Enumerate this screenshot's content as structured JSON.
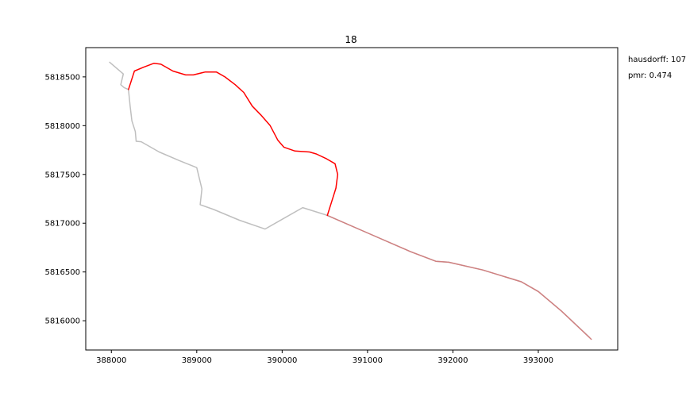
{
  "chart_data": {
    "type": "line",
    "title": "18",
    "xlabel": "",
    "ylabel": "",
    "xlim": [
      387700,
      393930
    ],
    "ylim": [
      5815700,
      5818800
    ],
    "xticks": [
      388000,
      389000,
      390000,
      391000,
      392000,
      393000
    ],
    "yticks": [
      5816000,
      5816500,
      5817000,
      5817500,
      5818000,
      5818500
    ],
    "grid": false,
    "annotations": [
      "hausdorff: 107",
      "pmr: 0.474"
    ],
    "series": [
      {
        "color": "#bfbfbf",
        "points": [
          [
            387980,
            5818650
          ],
          [
            388140,
            5818530
          ],
          [
            388110,
            5818420
          ],
          [
            388150,
            5818390
          ],
          [
            388200,
            5818370
          ],
          [
            388220,
            5818200
          ],
          [
            388240,
            5818050
          ],
          [
            388280,
            5817940
          ],
          [
            388290,
            5817840
          ],
          [
            388350,
            5817835
          ],
          [
            388560,
            5817730
          ],
          [
            388800,
            5817640
          ],
          [
            389000,
            5817570
          ],
          [
            389060,
            5817350
          ],
          [
            389040,
            5817190
          ],
          [
            389200,
            5817140
          ],
          [
            389500,
            5817030
          ],
          [
            389800,
            5816940
          ],
          [
            390000,
            5817040
          ],
          [
            390240,
            5817160
          ],
          [
            390530,
            5817080
          ],
          [
            391000,
            5816900
          ],
          [
            391500,
            5816710
          ],
          [
            391800,
            5816610
          ],
          [
            391950,
            5816600
          ],
          [
            392350,
            5816520
          ],
          [
            392800,
            5816400
          ],
          [
            393000,
            5816300
          ],
          [
            393270,
            5816100
          ],
          [
            393600,
            5815830
          ]
        ]
      },
      {
        "color": "#d08080",
        "points": [
          [
            390530,
            5817080
          ],
          [
            391000,
            5816900
          ],
          [
            391500,
            5816710
          ],
          [
            391800,
            5816610
          ],
          [
            391950,
            5816600
          ],
          [
            392350,
            5816520
          ],
          [
            392800,
            5816400
          ],
          [
            393000,
            5816300
          ],
          [
            393270,
            5816100
          ],
          [
            393620,
            5815810
          ]
        ]
      },
      {
        "color": "#ff0000",
        "points": [
          [
            388200,
            5818370
          ],
          [
            388270,
            5818560
          ],
          [
            388380,
            5818600
          ],
          [
            388500,
            5818640
          ],
          [
            388580,
            5818630
          ],
          [
            388720,
            5818560
          ],
          [
            388870,
            5818520
          ],
          [
            388960,
            5818520
          ],
          [
            389100,
            5818550
          ],
          [
            389230,
            5818550
          ],
          [
            389330,
            5818500
          ],
          [
            389450,
            5818420
          ],
          [
            389550,
            5818340
          ],
          [
            389650,
            5818200
          ],
          [
            389750,
            5818110
          ],
          [
            389860,
            5818000
          ],
          [
            389950,
            5817850
          ],
          [
            390020,
            5817780
          ],
          [
            390150,
            5817740
          ],
          [
            390320,
            5817730
          ],
          [
            390400,
            5817710
          ],
          [
            390520,
            5817660
          ],
          [
            390620,
            5817610
          ],
          [
            390650,
            5817500
          ],
          [
            390630,
            5817360
          ],
          [
            390580,
            5817220
          ],
          [
            390530,
            5817080
          ]
        ]
      }
    ]
  }
}
